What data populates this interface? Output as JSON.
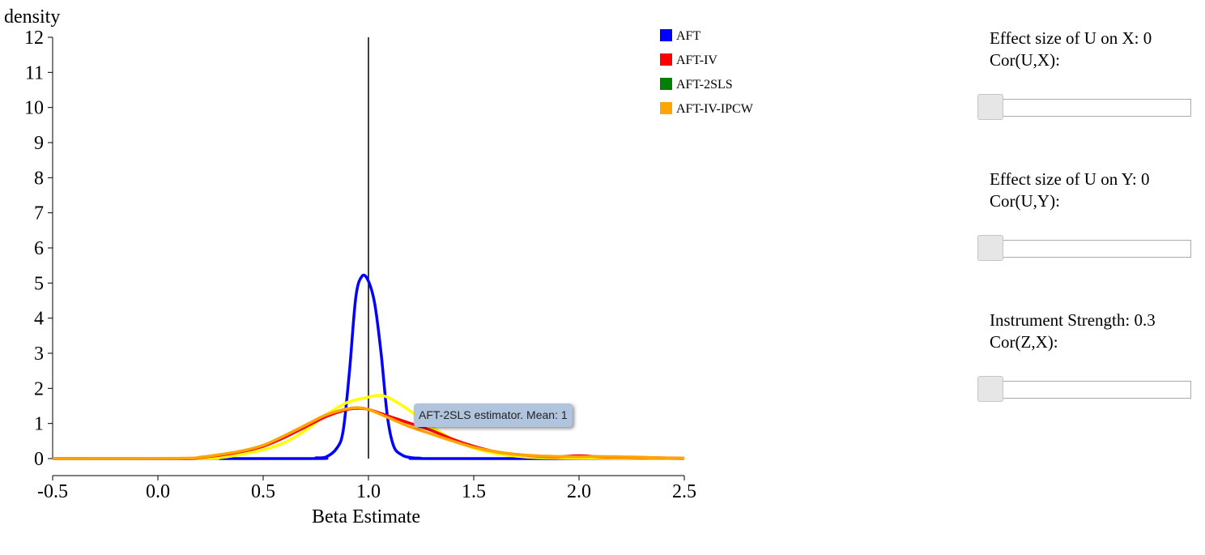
{
  "chart_data": {
    "type": "line",
    "ylabel": "density",
    "xlabel": "Beta Estimate",
    "xlim": [
      -0.5,
      2.5
    ],
    "ylim": [
      0,
      12
    ],
    "x_ticks": [
      "-0.5",
      "0.0",
      "0.5",
      "1.0",
      "1.5",
      "2.0",
      "2.5"
    ],
    "y_ticks": [
      "0",
      "1",
      "2",
      "3",
      "4",
      "5",
      "6",
      "7",
      "8",
      "9",
      "10",
      "11",
      "12"
    ],
    "reference_line_x": 1.0,
    "legend": [
      {
        "name": "AFT",
        "color": "#0000ff"
      },
      {
        "name": "AFT-IV",
        "color": "#ff0000"
      },
      {
        "name": "AFT-2SLS",
        "color": "#008000"
      },
      {
        "name": "AFT-IV-IPCW",
        "color": "#ffa500"
      }
    ],
    "series": [
      {
        "color": "#0000ff",
        "x": [
          -0.5,
          0.7,
          0.75,
          0.8,
          0.85,
          0.88,
          0.91,
          0.94,
          0.97,
          1.0,
          1.03,
          1.06,
          1.09,
          1.12,
          1.16,
          1.2,
          1.25,
          1.3,
          2.5
        ],
        "y": [
          0,
          0,
          0.02,
          0.05,
          0.3,
          0.8,
          2.5,
          4.6,
          5.2,
          5.05,
          4.4,
          3.0,
          1.2,
          0.35,
          0.1,
          0.03,
          0.01,
          0,
          0
        ]
      },
      {
        "color": "#ffff00",
        "x": [
          -0.5,
          0.2,
          0.3,
          0.4,
          0.5,
          0.6,
          0.7,
          0.8,
          0.9,
          1.0,
          1.05,
          1.1,
          1.2,
          1.3,
          1.4,
          1.5,
          1.6,
          1.7,
          1.8,
          2.0,
          2.5
        ],
        "y": [
          0,
          0,
          0.03,
          0.12,
          0.25,
          0.45,
          0.8,
          1.25,
          1.6,
          1.75,
          1.8,
          1.72,
          1.35,
          0.9,
          0.55,
          0.3,
          0.15,
          0.07,
          0.03,
          0.01,
          0
        ]
      },
      {
        "color": "#ff0000",
        "x": [
          -0.5,
          0.1,
          0.2,
          0.3,
          0.4,
          0.5,
          0.6,
          0.7,
          0.8,
          0.9,
          0.95,
          1.0,
          1.1,
          1.2,
          1.3,
          1.4,
          1.5,
          1.6,
          1.7,
          1.8,
          1.9,
          2.0,
          2.1,
          2.2,
          2.3,
          2.4,
          2.5
        ],
        "y": [
          0,
          0,
          0.03,
          0.1,
          0.2,
          0.35,
          0.6,
          0.9,
          1.2,
          1.4,
          1.43,
          1.4,
          1.2,
          1.0,
          0.8,
          0.55,
          0.35,
          0.2,
          0.12,
          0.07,
          0.05,
          0.08,
          0.05,
          0.04,
          0.03,
          0.02,
          0.01
        ]
      },
      {
        "color": "#ffa500",
        "x": [
          -0.5,
          0.1,
          0.2,
          0.3,
          0.4,
          0.5,
          0.6,
          0.7,
          0.8,
          0.9,
          0.95,
          1.0,
          1.1,
          1.2,
          1.3,
          1.4,
          1.5,
          1.6,
          1.7,
          1.8,
          1.9,
          2.0,
          2.1,
          2.2,
          2.3,
          2.4,
          2.5
        ],
        "y": [
          0,
          0.01,
          0.04,
          0.12,
          0.22,
          0.38,
          0.65,
          0.95,
          1.25,
          1.42,
          1.45,
          1.4,
          1.15,
          0.9,
          0.7,
          0.5,
          0.32,
          0.2,
          0.12,
          0.08,
          0.06,
          0.05,
          0.06,
          0.05,
          0.04,
          0.02,
          0.01
        ]
      }
    ]
  },
  "tooltip": "AFT-2SLS estimator. Mean: 1",
  "controls": [
    {
      "line1": "Effect size of U on X: 0",
      "line2": "Cor(U,X):",
      "value": 0
    },
    {
      "line1": "Effect size of U on Y: 0",
      "line2": "Cor(U,Y):",
      "value": 0
    },
    {
      "line1": "Instrument Strength: 0.3",
      "line2": "Cor(Z,X):",
      "value": 0
    }
  ]
}
